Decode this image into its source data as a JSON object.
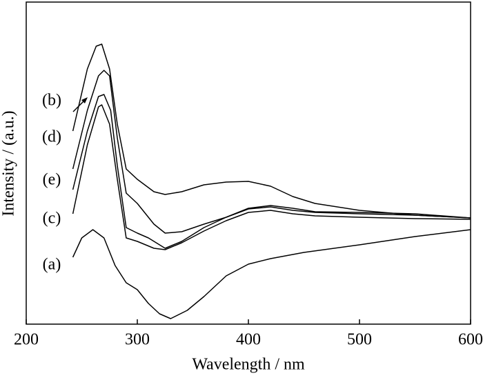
{
  "chart_data": {
    "type": "line",
    "x_label": "Wavelength / nm",
    "y_label": "Intensity / (a.u.)",
    "xlim": [
      200,
      600
    ],
    "xticks": [
      200,
      300,
      400,
      500,
      600
    ],
    "ylim": [
      0,
      467
    ],
    "series": [
      {
        "name": "(a)",
        "color": "#000000",
        "x": [
          242,
          250,
          260,
          270,
          280,
          290,
          300,
          310,
          320,
          330,
          345,
          360,
          380,
          400,
          420,
          450,
          500,
          550,
          600
        ],
        "values": [
          97,
          125,
          137,
          125,
          85,
          60,
          50,
          30,
          15,
          8,
          20,
          40,
          70,
          87,
          95,
          104,
          115,
          127,
          137
        ]
      },
      {
        "name": "(b)",
        "color": "#000000",
        "x": [
          242,
          255,
          263,
          268,
          275,
          282,
          290,
          300,
          315,
          325,
          340,
          360,
          380,
          400,
          420,
          440,
          460,
          500,
          550,
          600
        ],
        "values": [
          280,
          370,
          403,
          406,
          370,
          290,
          225,
          210,
          192,
          188,
          192,
          202,
          206,
          207,
          200,
          185,
          175,
          165,
          158,
          154
        ]
      },
      {
        "name": "(c)",
        "color": "#000000",
        "x": [
          242,
          255,
          265,
          268,
          275,
          282,
          290,
          300,
          315,
          325,
          340,
          360,
          380,
          400,
          420,
          440,
          460,
          500,
          550,
          600
        ],
        "values": [
          160,
          260,
          315,
          318,
          290,
          210,
          125,
          120,
          110,
          108,
          118,
          135,
          150,
          162,
          165,
          160,
          157,
          155,
          153,
          152
        ]
      },
      {
        "name": "(d)",
        "color": "#000000",
        "x": [
          242,
          255,
          265,
          270,
          275,
          282,
          290,
          300,
          315,
          325,
          340,
          360,
          380,
          400,
          420,
          440,
          460,
          500,
          550,
          600
        ],
        "values": [
          225,
          310,
          360,
          368,
          360,
          270,
          190,
          175,
          145,
          132,
          134,
          145,
          155,
          168,
          172,
          168,
          163,
          162,
          160,
          154
        ]
      },
      {
        "name": "(e)",
        "color": "#000000",
        "x": [
          242,
          255,
          265,
          270,
          276,
          282,
          290,
          300,
          310,
          325,
          340,
          360,
          380,
          400,
          420,
          440,
          460,
          500,
          550,
          600
        ],
        "values": [
          195,
          280,
          330,
          333,
          310,
          230,
          140,
          132,
          125,
          110,
          120,
          140,
          155,
          167,
          170,
          165,
          162,
          160,
          158,
          154
        ]
      }
    ]
  }
}
